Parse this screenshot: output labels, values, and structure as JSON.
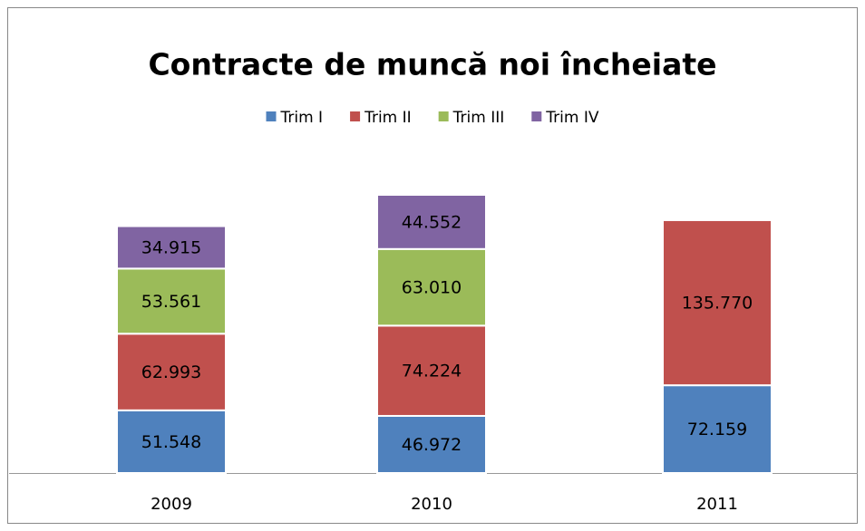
{
  "chart_data": {
    "type": "stacked_bar",
    "title": "Contracte de muncă noi încheiate",
    "categories": [
      "2009",
      "2010",
      "2011"
    ],
    "series": [
      {
        "name": "Trim I",
        "color": "#4f81bd",
        "values": [
          51548,
          46972,
          72159
        ],
        "value_labels": [
          "51.548",
          "46.972",
          "72.159"
        ]
      },
      {
        "name": "Trim II",
        "color": "#c0504d",
        "values": [
          62993,
          74224,
          135770
        ],
        "value_labels": [
          "62.993",
          "74.224",
          "135.770"
        ]
      },
      {
        "name": "Trim III",
        "color": "#9bbb59",
        "values": [
          53561,
          63010,
          null
        ],
        "value_labels": [
          "53.561",
          "63.010",
          null
        ]
      },
      {
        "name": "Trim IV",
        "color": "#8064a2",
        "values": [
          34915,
          44552,
          null
        ],
        "value_labels": [
          "34.915",
          "44.552",
          null
        ]
      }
    ],
    "legend": "top"
  }
}
